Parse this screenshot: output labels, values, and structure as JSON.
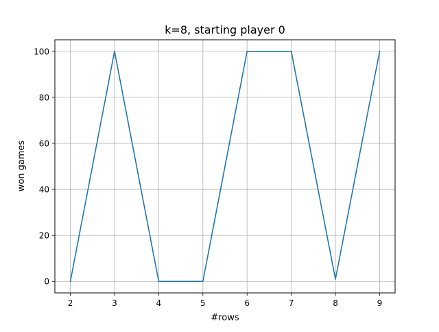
{
  "chart_data": {
    "type": "line",
    "title": "k=8, starting player 0",
    "xlabel": "#rows",
    "ylabel": "won games",
    "x": [
      2,
      3,
      4,
      5,
      6,
      7,
      8,
      9
    ],
    "series": [
      {
        "values": [
          0,
          100,
          0,
          0,
          100,
          100,
          1,
          100
        ]
      }
    ],
    "xticks": [
      "2",
      "3",
      "4",
      "5",
      "6",
      "7",
      "8",
      "9"
    ],
    "yticks": [
      "0",
      "20",
      "40",
      "60",
      "80",
      "100"
    ],
    "xlim": [
      1.65,
      9.35
    ],
    "ylim": [
      -5,
      105
    ],
    "grid": true,
    "line_color": "#1f77b4",
    "grid_color": "#b0b0b0"
  }
}
